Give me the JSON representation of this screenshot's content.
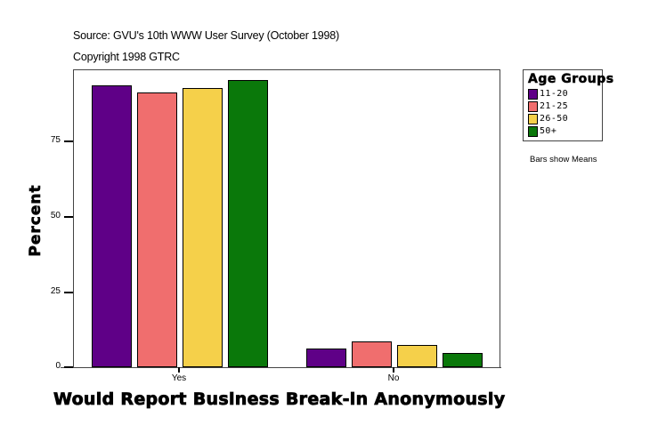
{
  "header": {
    "source": "Source: GVU's 10th WWW User Survey (October 1998)",
    "copyright": "Copyright 1998 GTRC"
  },
  "legend": {
    "title": "Age Groups",
    "items": [
      {
        "label": "11-20",
        "color": "#5f0087"
      },
      {
        "label": "21-25",
        "color": "#f06e6e"
      },
      {
        "label": "26-50",
        "color": "#f5d04a"
      },
      {
        "label": "50+",
        "color": "#0a780a"
      }
    ]
  },
  "note": "Bars show Means",
  "axes": {
    "ylabel": "Percent",
    "xlabel": "Would Report Business Break-in Anonymously",
    "yticks": [
      "0",
      "25",
      "50",
      "75"
    ],
    "xticks": [
      "Yes",
      "No"
    ]
  },
  "chart_data": {
    "type": "bar",
    "title": "",
    "categories": [
      "Yes",
      "No"
    ],
    "series": [
      {
        "name": "11-20",
        "values": [
          93.4,
          6.1
        ],
        "color": "#5f0087"
      },
      {
        "name": "21-25",
        "values": [
          91.1,
          8.5
        ],
        "color": "#f06e6e"
      },
      {
        "name": "26-50",
        "values": [
          92.5,
          7.3
        ],
        "color": "#f5d04a"
      },
      {
        "name": "50+",
        "values": [
          95.2,
          4.6
        ],
        "color": "#0a780a"
      }
    ],
    "xlabel": "Would Report Business Break-in Anonymously",
    "ylabel": "Percent",
    "ylim": [
      0,
      98.8
    ],
    "yticks": [
      0,
      25,
      50,
      75
    ],
    "grid": false,
    "legend_position": "right",
    "legend_title": "Age Groups",
    "annotations": [
      "Bars show Means",
      "Source: GVU's 10th WWW User Survey (October 1998)",
      "Copyright 1998 GTRC"
    ]
  }
}
